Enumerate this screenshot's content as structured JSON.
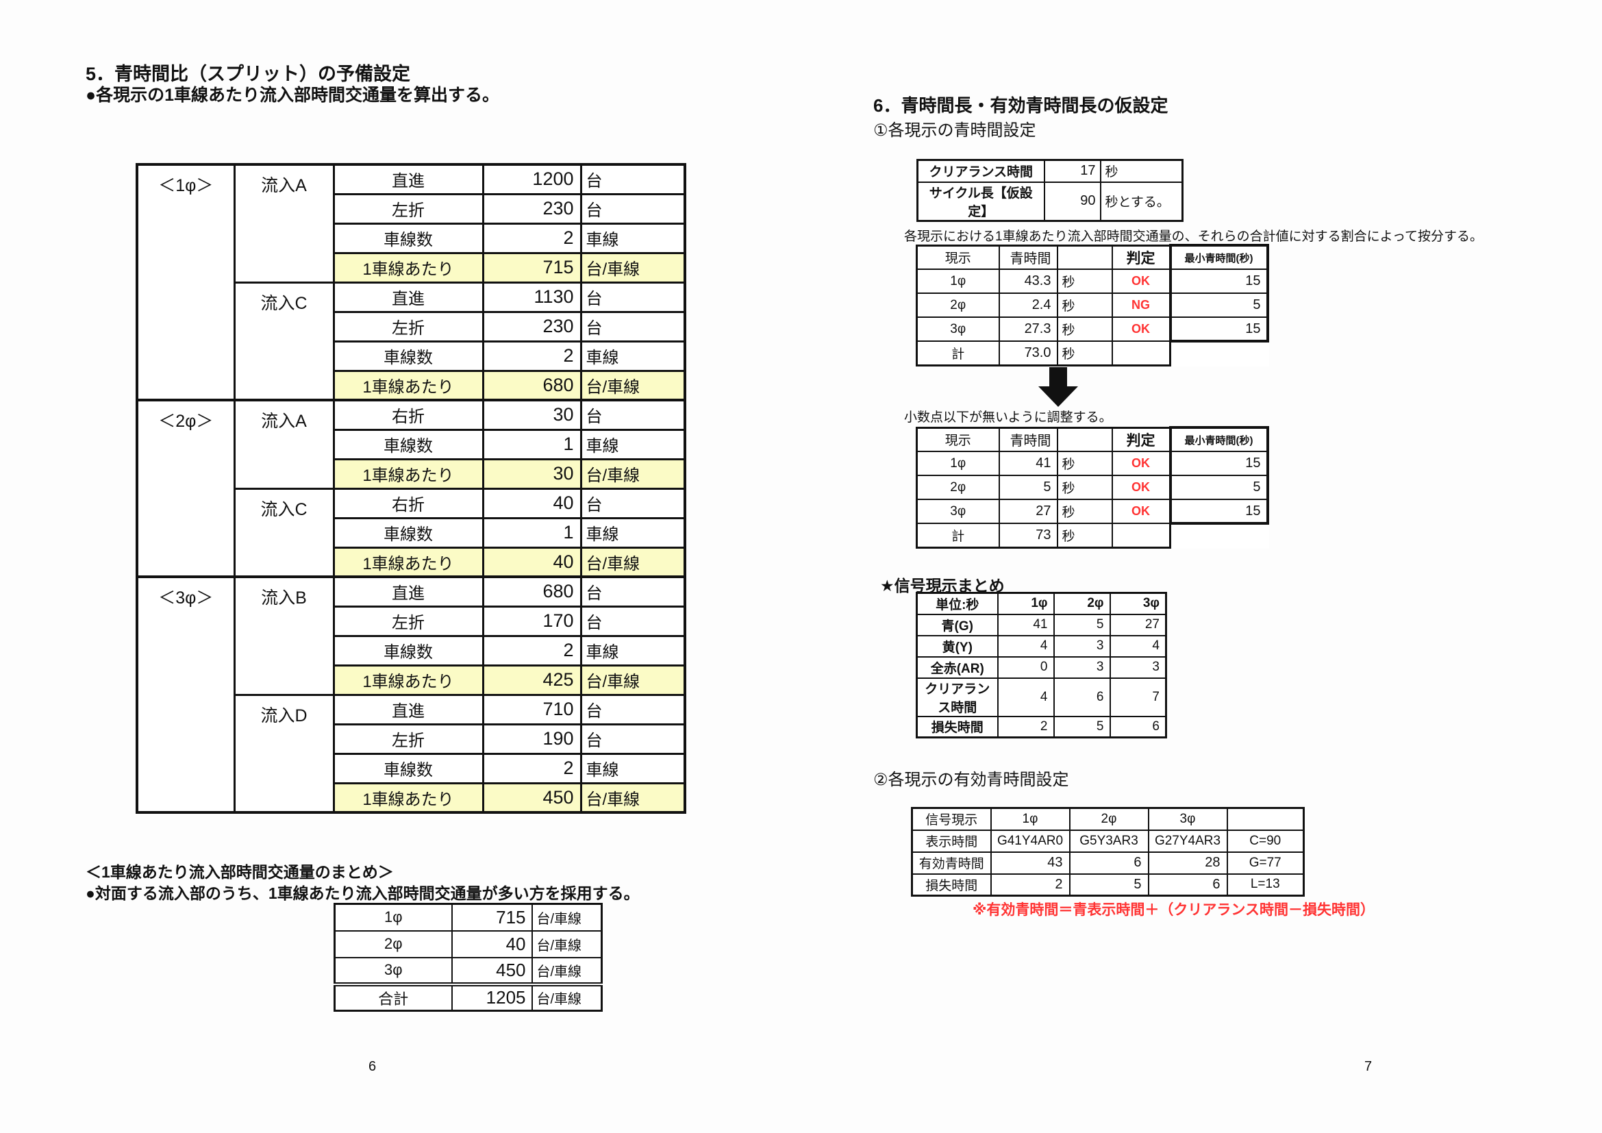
{
  "colors": {
    "highlight": "#FBFBC6",
    "accent_red": "#FF3333"
  },
  "page_left": {
    "page_number": "6",
    "title": "5．青時間比（スプリット）の予備設定",
    "subtitle": "●各現示の1車線あたり流入部時間交通量を算出する。",
    "main_table": {
      "highlight_label": "1車線あたり",
      "groups": [
        {
          "phase": "＜1φ＞",
          "inflows": [
            {
              "name": "流入A",
              "rows": [
                [
                  "直進",
                  "1200",
                  "台"
                ],
                [
                  "左折",
                  "230",
                  "台"
                ],
                [
                  "車線数",
                  "2",
                  "車線"
                ],
                [
                  "1車線あたり",
                  "715",
                  "台/車線"
                ]
              ]
            },
            {
              "name": "流入C",
              "rows": [
                [
                  "直進",
                  "1130",
                  "台"
                ],
                [
                  "左折",
                  "230",
                  "台"
                ],
                [
                  "車線数",
                  "2",
                  "車線"
                ],
                [
                  "1車線あたり",
                  "680",
                  "台/車線"
                ]
              ]
            }
          ]
        },
        {
          "phase": "＜2φ＞",
          "inflows": [
            {
              "name": "流入A",
              "rows": [
                [
                  "右折",
                  "30",
                  "台"
                ],
                [
                  "車線数",
                  "1",
                  "車線"
                ],
                [
                  "1車線あたり",
                  "30",
                  "台/車線"
                ]
              ]
            },
            {
              "name": "流入C",
              "rows": [
                [
                  "右折",
                  "40",
                  "台"
                ],
                [
                  "車線数",
                  "1",
                  "車線"
                ],
                [
                  "1車線あたり",
                  "40",
                  "台/車線"
                ]
              ]
            }
          ]
        },
        {
          "phase": "＜3φ＞",
          "inflows": [
            {
              "name": "流入B",
              "rows": [
                [
                  "直進",
                  "680",
                  "台"
                ],
                [
                  "左折",
                  "170",
                  "台"
                ],
                [
                  "車線数",
                  "2",
                  "車線"
                ],
                [
                  "1車線あたり",
                  "425",
                  "台/車線"
                ]
              ]
            },
            {
              "name": "流入D",
              "rows": [
                [
                  "直進",
                  "710",
                  "台"
                ],
                [
                  "左折",
                  "190",
                  "台"
                ],
                [
                  "車線数",
                  "2",
                  "車線"
                ],
                [
                  "1車線あたり",
                  "450",
                  "台/車線"
                ]
              ]
            }
          ]
        }
      ]
    },
    "summary": {
      "heading": "＜1車線あたり流入部時間交通量のまとめ＞",
      "note": "●対面する流入部のうち、1車線あたり流入部時間交通量が多い方を採用する。",
      "rows": [
        [
          "1φ",
          "715",
          "台/車線"
        ],
        [
          "2φ",
          "40",
          "台/車線"
        ],
        [
          "3φ",
          "450",
          "台/車線"
        ],
        [
          "合計",
          "1205",
          "台/車線"
        ]
      ]
    }
  },
  "page_right": {
    "page_number": "7",
    "title": "6．青時間長・有効青時間長の仮設定",
    "section1": {
      "heading": "①各現示の青時間設定",
      "setup_rows": [
        [
          "クリアランス時間",
          "17",
          "秒"
        ],
        [
          "サイクル長【仮設定】",
          "90",
          "秒とする。"
        ]
      ],
      "apportion_note": "各現示における1車線あたり流入部時間交通量の、それらの合計値に対する割合によって按分する。",
      "judge_headers": [
        "現示",
        "青時間",
        "",
        "判定",
        "最小青時間(秒)"
      ],
      "judge_raw": {
        "rows": [
          [
            "1φ",
            "43.3",
            "秒",
            "OK",
            "15"
          ],
          [
            "2φ",
            "2.4",
            "秒",
            "NG",
            "5"
          ],
          [
            "3φ",
            "27.3",
            "秒",
            "OK",
            "15"
          ]
        ],
        "total": [
          "計",
          "73.0",
          "秒",
          ""
        ]
      },
      "adjust_note": "小数点以下が無いように調整する。",
      "judge_adjusted": {
        "rows": [
          [
            "1φ",
            "41",
            "秒",
            "OK",
            "15"
          ],
          [
            "2φ",
            "5",
            "秒",
            "OK",
            "5"
          ],
          [
            "3φ",
            "27",
            "秒",
            "OK",
            "15"
          ]
        ],
        "total": [
          "計",
          "73",
          "秒",
          ""
        ]
      }
    },
    "signal_summary": {
      "heading": "★信号現示まとめ",
      "headers": [
        "単位:秒",
        "1φ",
        "2φ",
        "3φ"
      ],
      "rows": [
        [
          "青(G)",
          "41",
          "5",
          "27"
        ],
        [
          "黄(Y)",
          "4",
          "3",
          "4"
        ],
        [
          "全赤(AR)",
          "0",
          "3",
          "3"
        ],
        [
          "クリアランス時間",
          "4",
          "6",
          "7"
        ],
        [
          "損失時間",
          "2",
          "5",
          "6"
        ]
      ]
    },
    "section2": {
      "heading": "②各現示の有効青時間設定",
      "headers": [
        "信号現示",
        "1φ",
        "2φ",
        "3φ",
        ""
      ],
      "rows": [
        [
          "表示時間",
          "G41Y4AR0",
          "G5Y3AR3",
          "G27Y4AR3",
          "C=90"
        ],
        [
          "有効青時間",
          "43",
          "6",
          "28",
          "G=77"
        ],
        [
          "損失時間",
          "2",
          "5",
          "6",
          "L=13"
        ]
      ],
      "formula_note": "※有効青時間＝青表示時間＋（クリアランス時間－損失時間）"
    }
  }
}
